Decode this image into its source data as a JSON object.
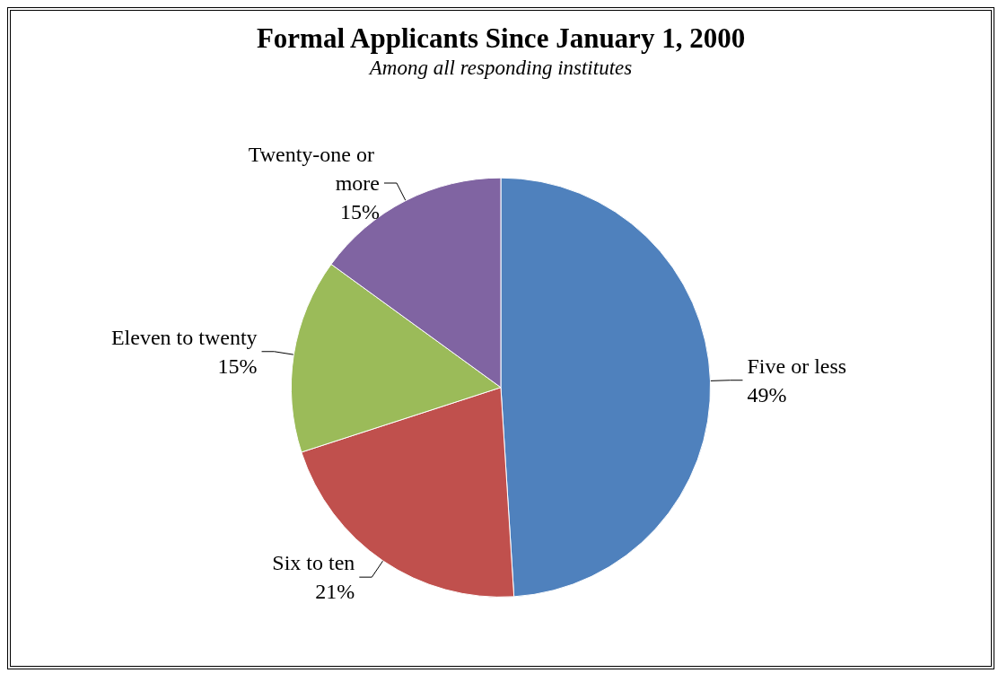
{
  "chart_data": {
    "type": "pie",
    "title": "Formal Applicants Since January 1, 2000",
    "subtitle": "Among all responding institutes",
    "categories": [
      "Five or less",
      "Six to ten",
      "Eleven to twenty",
      "Twenty-one or more"
    ],
    "values": [
      49,
      21,
      15,
      15
    ],
    "value_labels": [
      "49%",
      "21%",
      "15%",
      "15%"
    ],
    "colors": [
      "#4f81bd",
      "#c0504d",
      "#9bbb59",
      "#8064a2"
    ],
    "legend": false
  }
}
